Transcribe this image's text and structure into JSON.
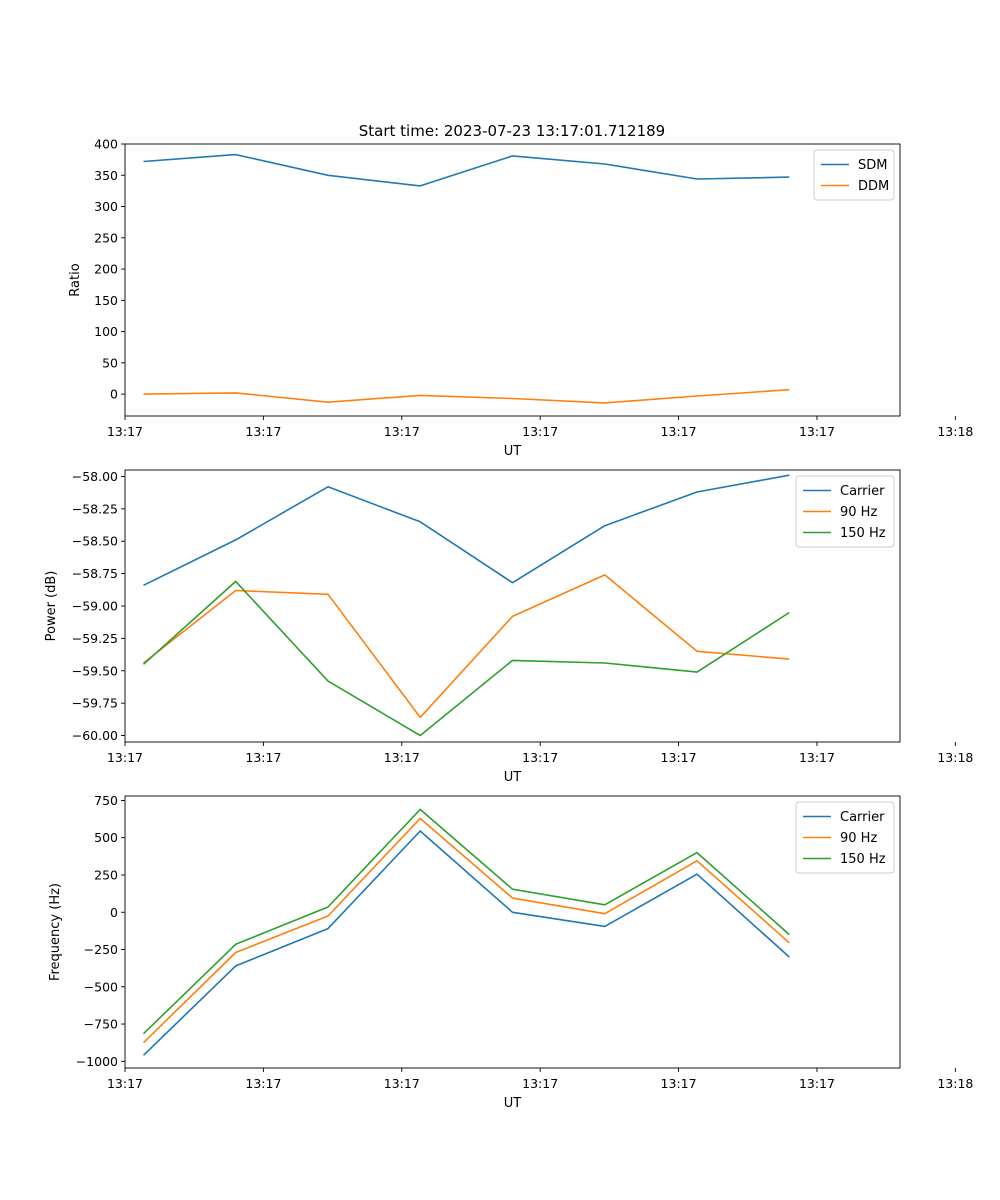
{
  "title": "Start time: 2023-07-23 13:17:01.712189",
  "colors": {
    "blue": "#1f77b4",
    "orange": "#ff7f0e",
    "green": "#2ca02c",
    "axis": "#000000",
    "legend_border": "#cccccc"
  },
  "chart_data": [
    {
      "type": "line",
      "id": "ratio",
      "title": "Start time: 2023-07-23 13:17:01.712189",
      "xlabel": "UT",
      "ylabel": "Ratio",
      "x": [
        1,
        2,
        3,
        4,
        5,
        6,
        7,
        8
      ],
      "xlim": [
        0.8,
        9.2
      ],
      "xticks": [
        1,
        2,
        3,
        4,
        5,
        6,
        7
      ],
      "xticks_values": [
        0.8,
        2.3,
        3.8,
        5.3,
        6.8,
        8.3,
        9.8
      ],
      "xtick_labels": [
        "13:17",
        "13:17",
        "13:17",
        "13:17",
        "13:17",
        "13:17",
        "13:18"
      ],
      "ylim": [
        -35,
        400
      ],
      "yticks": [
        0,
        50,
        100,
        150,
        200,
        250,
        300,
        350,
        400
      ],
      "ytick_labels": [
        "0",
        "50",
        "100",
        "150",
        "200",
        "250",
        "300",
        "350",
        "400"
      ],
      "legend": "top-right",
      "series": [
        {
          "name": "SDM",
          "color": "#1f77b4",
          "values": [
            372,
            383,
            350,
            333,
            381,
            368,
            344,
            347
          ]
        },
        {
          "name": "DDM",
          "color": "#ff7f0e",
          "values": [
            0,
            2,
            -13,
            -2,
            -7,
            -14,
            -3,
            7
          ]
        }
      ]
    },
    {
      "type": "line",
      "id": "power",
      "title": "",
      "xlabel": "UT",
      "ylabel": "Power (dB)",
      "x": [
        1,
        2,
        3,
        4,
        5,
        6,
        7,
        8
      ],
      "xlim": [
        0.8,
        9.2
      ],
      "xticks_values": [
        0.8,
        2.3,
        3.8,
        5.3,
        6.8,
        8.3,
        9.8
      ],
      "xtick_labels": [
        "13:17",
        "13:17",
        "13:17",
        "13:17",
        "13:17",
        "13:17",
        "13:18"
      ],
      "ylim": [
        -60.05,
        -57.95
      ],
      "yticks": [
        -58.0,
        -58.25,
        -58.5,
        -58.75,
        -59.0,
        -59.25,
        -59.5,
        -59.75,
        -60.0
      ],
      "ytick_labels": [
        "−58.00",
        "−58.25",
        "−58.50",
        "−58.75",
        "−59.00",
        "−59.25",
        "−59.50",
        "−59.75",
        "−60.00"
      ],
      "legend": "top-right",
      "series": [
        {
          "name": "Carrier",
          "color": "#1f77b4",
          "values": [
            -58.84,
            -58.49,
            -58.08,
            -58.35,
            -58.82,
            -58.38,
            -58.12,
            -57.99
          ]
        },
        {
          "name": "90 Hz",
          "color": "#ff7f0e",
          "values": [
            -59.44,
            -58.88,
            -58.91,
            -59.86,
            -59.08,
            -58.76,
            -59.35,
            -59.41
          ]
        },
        {
          "name": "150 Hz",
          "color": "#2ca02c",
          "values": [
            -59.45,
            -58.81,
            -59.58,
            -60.0,
            -59.42,
            -59.44,
            -59.51,
            -59.05
          ]
        }
      ]
    },
    {
      "type": "line",
      "id": "frequency",
      "title": "",
      "xlabel": "UT",
      "ylabel": "Frequency (Hz)",
      "x": [
        1,
        2,
        3,
        4,
        5,
        6,
        7,
        8
      ],
      "xlim": [
        0.8,
        9.2
      ],
      "xticks_values": [
        0.8,
        2.3,
        3.8,
        5.3,
        6.8,
        8.3,
        9.8
      ],
      "xtick_labels": [
        "13:17",
        "13:17",
        "13:17",
        "13:17",
        "13:17",
        "13:17",
        "13:18"
      ],
      "ylim": [
        -1045,
        780
      ],
      "yticks": [
        750,
        500,
        250,
        0,
        -250,
        -500,
        -750,
        -1000
      ],
      "ytick_labels": [
        "750",
        "500",
        "250",
        "0",
        "−250",
        "−500",
        "−750",
        "−1000"
      ],
      "legend": "top-right",
      "series": [
        {
          "name": "Carrier",
          "color": "#1f77b4",
          "values": [
            -960,
            -360,
            -110,
            545,
            0,
            -95,
            255,
            -300
          ]
        },
        {
          "name": "90 Hz",
          "color": "#ff7f0e",
          "values": [
            -875,
            -270,
            -25,
            630,
            95,
            -10,
            345,
            -205
          ]
        },
        {
          "name": "150 Hz",
          "color": "#2ca02c",
          "values": [
            -815,
            -215,
            35,
            690,
            155,
            50,
            400,
            -150
          ]
        }
      ]
    }
  ]
}
